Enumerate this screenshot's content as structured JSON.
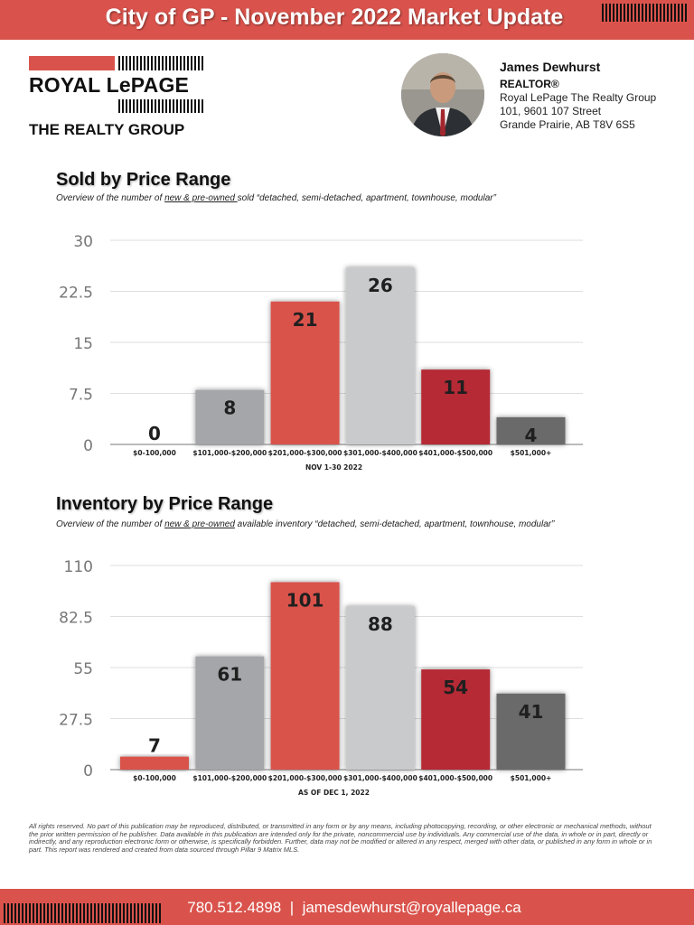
{
  "header": {
    "title": "City of GP - November 2022 Market Update"
  },
  "brand": {
    "logo_main": "ROYAL LePAGE",
    "logo_sub": "THE REALTY GROUP"
  },
  "agent": {
    "name": "James Dewhurst",
    "title": "REALTOR®",
    "company": "Royal LePage The Realty Group",
    "address1": "101, 9601 107 Street",
    "address2": "Grande Prairie, AB T8V 6S5"
  },
  "sold": {
    "title": "Sold by Price Range",
    "sub_before": "Overview of the number of ",
    "sub_underline": "new & pre-owned ",
    "sub_after": "sold “detached, semi-detached, apartment, townhouse, modular”"
  },
  "inventory": {
    "title": "Inventory by Price Range",
    "sub_before": "Overview of the number of ",
    "sub_underline": "new & pre-owned",
    "sub_after": " available inventory “detached, semi-detached, apartment, townhouse, modular”"
  },
  "chart_data": [
    {
      "type": "bar",
      "title": "Sold by Price Range",
      "categories": [
        "$0-100,000",
        "$101,000-$200,000",
        "$201,000-$300,000",
        "$301,000-$400,000",
        "$401,000-$500,000",
        "$501,000+"
      ],
      "values": [
        0,
        8,
        21,
        26,
        11,
        4
      ],
      "xlabel": "NOV 1-30 2022",
      "ylabel": "",
      "ylim": [
        0,
        30
      ],
      "yticks": [
        0,
        7.5,
        15,
        22.5,
        30
      ],
      "yticklabels": [
        "0",
        "7.5",
        "15",
        "22.5",
        "30"
      ],
      "grid": true,
      "bar_colors": [
        "#d9534c",
        "#a4a6a9",
        "#d9534c",
        "#c9cacc",
        "#b52c34",
        "#6b6b6b"
      ]
    },
    {
      "type": "bar",
      "title": "Inventory by Price Range",
      "categories": [
        "$0-100,000",
        "$101,000-$200,000",
        "$201,000-$300,000",
        "$301,000-$400,000",
        "$401,000-$500,000",
        "$501,000+"
      ],
      "values": [
        7,
        61,
        101,
        88,
        54,
        41
      ],
      "xlabel": "AS OF DEC 1, 2022",
      "ylabel": "",
      "ylim": [
        0,
        110
      ],
      "yticks": [
        0,
        27.5,
        55,
        82.5,
        110
      ],
      "yticklabels": [
        "0",
        "27.5",
        "55",
        "82.5",
        "110"
      ],
      "grid": true,
      "bar_colors": [
        "#d9534c",
        "#a4a6a9",
        "#d9534c",
        "#c9cacc",
        "#b52c34",
        "#6b6b6b"
      ]
    }
  ],
  "disclaimer": "All rights reserved. No part of this publication may be reproduced, distributed, or transmitted in any form or by any means, including photocopying, recording, or other electronic or mechanical methods, without the prior written permission of he publisher. Data available in this publication are intended only for the private, noncommercial use by individuals. Any commercial use of the data, in whole or in part, directly or indirectly, and any reproduction electronic form or otherwise, is specifically forbidden. Further, data may not be modified or altered in any respect, merged with other data, or published in any form in whole or in part. This report was rendered and created from data sourced through Pillar 9 Matrix MLS.",
  "footer": {
    "contact": "780.512.4898  |  jamesdewhurst@royallepage.ca"
  }
}
